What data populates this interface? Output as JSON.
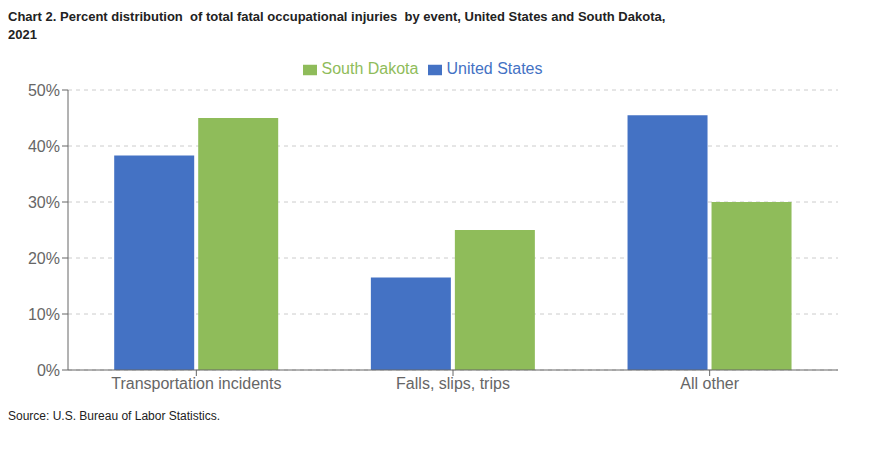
{
  "chart_data": {
    "type": "bar",
    "title": "Chart 2. Percent distribution  of total fatal occupational injuries  by event, United States and South Dakota,\n2021",
    "annotations": [
      "Source: U.S. Bureau of Labor Statistics."
    ],
    "categories": [
      "Transportation incidents",
      "Falls, slips, trips",
      "All other"
    ],
    "series": [
      {
        "name": "United States",
        "color": "#4472C4",
        "values": [
          0.383,
          0.165,
          0.455
        ]
      },
      {
        "name": "South Dakota",
        "color": "#8FBC5A",
        "values": [
          0.45,
          0.25,
          0.3
        ]
      }
    ],
    "ylim": [
      0,
      0.5
    ],
    "yticks": [
      {
        "value": 0.0,
        "label": "0%"
      },
      {
        "value": 0.1,
        "label": "10%"
      },
      {
        "value": 0.2,
        "label": "20%"
      },
      {
        "value": 0.3,
        "label": "30%"
      },
      {
        "value": 0.4,
        "label": "40%"
      },
      {
        "value": 0.5,
        "label": "50%"
      }
    ],
    "grid": true,
    "legend": "top"
  }
}
